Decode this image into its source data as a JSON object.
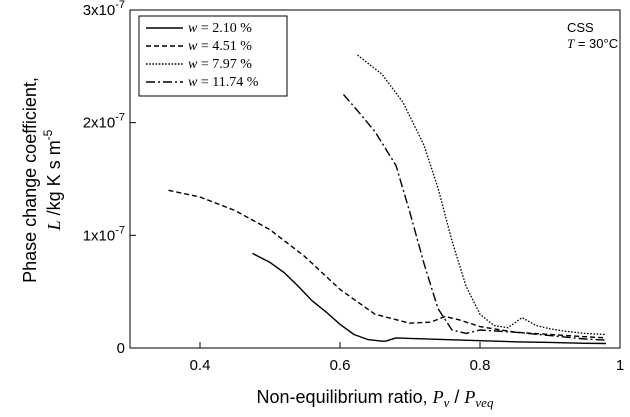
{
  "chart_data": {
    "type": "line",
    "xlabel": {
      "prefix": "Non-equilibrium ratio, ",
      "var1": "P",
      "sub1": "v",
      "sep": " / ",
      "var2": "P",
      "sub2": "veq"
    },
    "ylabel": {
      "line1": "Phase change coefficient,",
      "var": "L",
      "unit": " /kg K s m",
      "exp": "-5"
    },
    "xlim": [
      0.3,
      1.0
    ],
    "ylim": [
      0,
      3e-07
    ],
    "xticks": [
      {
        "value": 0.4,
        "label": "0.4"
      },
      {
        "value": 0.6,
        "label": "0.6"
      },
      {
        "value": 0.8,
        "label": "0.8"
      },
      {
        "value": 1.0,
        "label": "1"
      }
    ],
    "yticks": [
      {
        "value": 0,
        "base": "0",
        "exp": ""
      },
      {
        "value": 1e-07,
        "base": "1x10",
        "exp": "-7"
      },
      {
        "value": 2e-07,
        "base": "2x10",
        "exp": "-7"
      },
      {
        "value": 3e-07,
        "base": "3x10",
        "exp": "-7"
      }
    ],
    "annotation": {
      "line1": "CSS",
      "var": "T",
      "rest": " = 30°C"
    },
    "legend_position": "top-left",
    "series": [
      {
        "name": "2.10 %",
        "var": "w",
        "style": "solid",
        "x": [
          0.475,
          0.5,
          0.52,
          0.54,
          0.56,
          0.58,
          0.6,
          0.62,
          0.64,
          0.66,
          0.665,
          0.68,
          0.7,
          0.75,
          0.8,
          0.85,
          0.9,
          0.95,
          0.98
        ],
        "y": [
          8.4e-08,
          7.6e-08,
          6.7e-08,
          5.5e-08,
          4.2e-08,
          3.2e-08,
          2.1e-08,
          1.2e-08,
          7.5e-09,
          6e-09,
          6e-09,
          9e-09,
          8.5e-09,
          7.5e-09,
          6.5e-09,
          5.5e-09,
          5e-09,
          4.2e-09,
          4e-09
        ]
      },
      {
        "name": "4.51 %",
        "var": "w",
        "style": "dashed",
        "x": [
          0.355,
          0.4,
          0.45,
          0.5,
          0.55,
          0.6,
          0.65,
          0.7,
          0.73,
          0.75,
          0.77,
          0.8,
          0.85,
          0.9,
          0.95,
          0.98
        ],
        "y": [
          1.4e-07,
          1.34e-07,
          1.22e-07,
          1.05e-07,
          8.1e-08,
          5.2e-08,
          3e-08,
          2.2e-08,
          2.3e-08,
          2.8e-08,
          2.5e-08,
          1.9e-08,
          1.4e-08,
          1.2e-08,
          1e-08,
          9e-09
        ]
      },
      {
        "name": "7.97 %",
        "var": "w",
        "style": "dotted",
        "x": [
          0.625,
          0.66,
          0.69,
          0.72,
          0.74,
          0.76,
          0.78,
          0.8,
          0.82,
          0.84,
          0.86,
          0.88,
          0.9,
          0.92,
          0.95,
          0.98
        ],
        "y": [
          2.6e-07,
          2.43e-07,
          2.18e-07,
          1.8e-07,
          1.42e-07,
          9.5e-08,
          5.5e-08,
          3e-08,
          2e-08,
          1.8e-08,
          2.7e-08,
          2e-08,
          1.7e-08,
          1.5e-08,
          1.3e-08,
          1.2e-08
        ]
      },
      {
        "name": "11.74 %",
        "var": "w",
        "style": "dashdot",
        "x": [
          0.605,
          0.63,
          0.65,
          0.67,
          0.68,
          0.7,
          0.72,
          0.74,
          0.76,
          0.78,
          0.8,
          0.85,
          0.9,
          0.95,
          0.98
        ],
        "y": [
          2.25e-07,
          2.07e-07,
          1.92e-07,
          1.72e-07,
          1.62e-07,
          1.2e-07,
          7.5e-08,
          3.5e-08,
          1.6e-08,
          1.3e-08,
          1.6e-08,
          1.4e-08,
          1.1e-08,
          8e-09,
          7e-09
        ]
      }
    ]
  }
}
